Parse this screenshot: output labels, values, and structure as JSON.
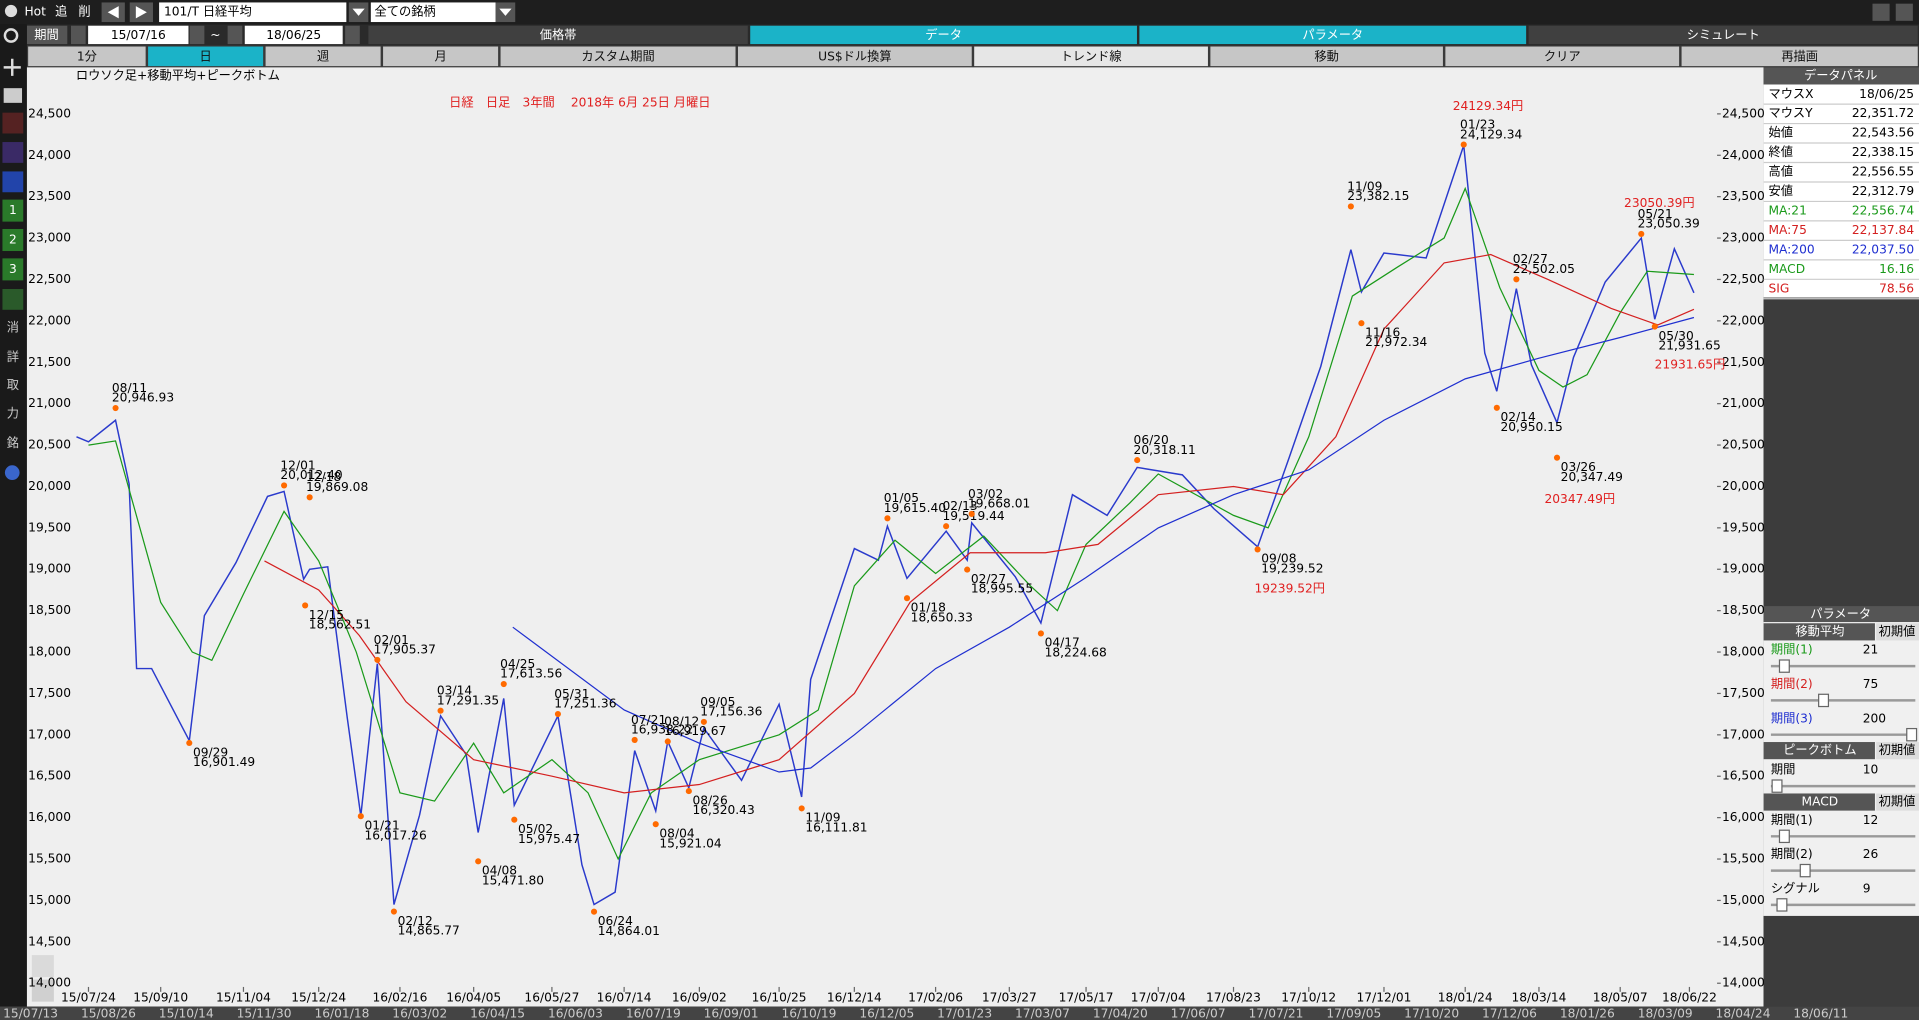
{
  "toolbar": {
    "hot": "Hot",
    "add": "追",
    "del": "削",
    "symbol": "101/T 日経平均",
    "filter": "全ての銘柄"
  },
  "period": {
    "label": "期間",
    "from": "15/07/16",
    "sep": "~",
    "to": "18/06/25"
  },
  "tabs": [
    "価格帯",
    "データ",
    "パラメータ",
    "シミュレート"
  ],
  "buttons": [
    "1分",
    "日",
    "週",
    "月",
    "カスタム期間",
    "US$ドル換算",
    "トレンド線",
    "移動",
    "クリア",
    "再描画"
  ],
  "sidebar": [
    "1",
    "2",
    "3",
    "消",
    "詳",
    "取",
    "力",
    "銘"
  ],
  "chart_data": {
    "type": "line",
    "title": "日経　日足　3年間　 2018年 6月 25日 月曜日",
    "subtitle": "ロウソク足+移動平均+ピークボトム",
    "xlim": [
      "15/07/14",
      "18/07/12"
    ],
    "xticks": [
      "15/07/24",
      "15/09/10",
      "15/11/04",
      "15/12/24",
      "16/02/16",
      "16/04/05",
      "16/05/27",
      "16/07/14",
      "16/09/02",
      "16/10/25",
      "16/12/14",
      "17/02/06",
      "17/03/27",
      "17/05/17",
      "17/07/04",
      "17/08/23",
      "17/10/12",
      "17/12/01",
      "18/01/24",
      "18/03/14",
      "18/05/07",
      "18/06/22"
    ],
    "ylim": [
      13896,
      25062
    ],
    "yticks": [
      {
        "value": 14000,
        "label": "14,000"
      },
      {
        "value": 14500,
        "label": "14,500"
      },
      {
        "value": 15000,
        "label": "15,000"
      },
      {
        "value": 15500,
        "label": "15,500"
      },
      {
        "value": 16000,
        "label": "16,000"
      },
      {
        "value": 16500,
        "label": "16,500"
      },
      {
        "value": 17000,
        "label": "17,000"
      },
      {
        "value": 17500,
        "label": "17,500"
      },
      {
        "value": 18000,
        "label": "18,000"
      },
      {
        "value": 18500,
        "label": "18,500"
      },
      {
        "value": 19000,
        "label": "19,000"
      },
      {
        "value": 19500,
        "label": "19,500"
      },
      {
        "value": 20000,
        "label": "20,000"
      },
      {
        "value": 20500,
        "label": "20,500"
      },
      {
        "value": 21000,
        "label": "21,000"
      },
      {
        "value": 21500,
        "label": "21,500"
      },
      {
        "value": 22000,
        "label": "22,000"
      },
      {
        "value": 22500,
        "label": "22,500"
      },
      {
        "value": 23000,
        "label": "23,000"
      },
      {
        "value": 23500,
        "label": "23,500"
      },
      {
        "value": 24000,
        "label": "24,000"
      },
      {
        "value": 24500,
        "label": "24,500"
      }
    ],
    "series": [
      {
        "color": "#2a3acc",
        "x": [
          "15/07/16",
          "15/07/24",
          "15/08/11",
          "15/08/20",
          "15/08/25",
          "15/09/04",
          "15/09/29",
          "15/10/09",
          "15/10/30",
          "15/11/20",
          "15/12/01",
          "15/12/14",
          "15/12/18",
          "15/12/30",
          "16/01/12",
          "16/01/21",
          "16/02/01",
          "16/02/12",
          "16/02/29",
          "16/03/14",
          "16/03/31",
          "16/04/08",
          "16/04/25",
          "16/05/02",
          "16/05/31",
          "16/06/16",
          "16/06/24",
          "16/07/08",
          "16/07/21",
          "16/08/04",
          "16/08/12",
          "16/08/26",
          "16/09/05",
          "16/09/30",
          "16/10/25",
          "16/11/09",
          "16/11/15",
          "16/12/14",
          "16/12/30",
          "17/01/05",
          "17/01/18",
          "17/02/13",
          "17/02/27",
          "17/03/02",
          "17/03/31",
          "17/04/17",
          "17/05/08",
          "17/05/31",
          "17/06/20",
          "17/07/20",
          "17/08/10",
          "17/09/08",
          "17/09/29",
          "17/10/20",
          "17/11/09",
          "17/11/16",
          "17/12/01",
          "17/12/29",
          "18/01/23",
          "18/02/06",
          "18/02/14",
          "18/02/27",
          "18/03/09",
          "18/03/26",
          "18/04/06",
          "18/04/27",
          "18/05/21",
          "18/05/30",
          "18/06/12",
          "18/06/25"
        ],
        "values": [
          20600,
          20540,
          20800,
          20030,
          17800,
          17800,
          16930,
          18440,
          19080,
          19880,
          19940,
          18880,
          19000,
          19030,
          17200,
          16020,
          17860,
          14950,
          16030,
          17230,
          16760,
          15820,
          17440,
          16150,
          17230,
          15430,
          14950,
          15100,
          16810,
          16080,
          16920,
          16360,
          17080,
          16450,
          17370,
          16250,
          17670,
          19250,
          19110,
          19520,
          18890,
          19460,
          19110,
          19560,
          18910,
          18350,
          19900,
          19650,
          20230,
          20140,
          19730,
          19270,
          20350,
          21450,
          22860,
          22350,
          22820,
          22760,
          24120,
          21610,
          21150,
          22390,
          21470,
          20770,
          21560,
          22470,
          23000,
          22020,
          22870,
          22340
        ]
      },
      {
        "color": "#1a9a1a",
        "x": [
          "15/07/24",
          "15/08/11",
          "15/09/10",
          "15/10/01",
          "15/10/14",
          "15/11/04",
          "15/12/01",
          "15/12/24",
          "16/01/18",
          "16/02/16",
          "16/03/10",
          "16/04/05",
          "16/04/25",
          "16/05/27",
          "16/06/20",
          "16/07/10",
          "16/08/01",
          "16/09/02",
          "16/10/25",
          "16/11/20",
          "16/12/14",
          "17/01/10",
          "17/02/06",
          "17/03/10",
          "17/04/10",
          "17/04/28",
          "17/05/17",
          "17/06/15",
          "17/07/04",
          "17/08/23",
          "17/09/15",
          "17/10/12",
          "17/11/10",
          "17/12/10",
          "18/01/10",
          "18/01/24",
          "18/02/16",
          "18/03/14",
          "18/03/30",
          "18/04/15",
          "18/05/07",
          "18/05/25",
          "18/06/25"
        ],
        "values": [
          20500,
          20550,
          18600,
          18000,
          17900,
          18700,
          19700,
          19100,
          18000,
          16300,
          16200,
          16900,
          16300,
          16700,
          16300,
          15500,
          16300,
          16700,
          17000,
          17300,
          18800,
          19350,
          18950,
          19400,
          18800,
          18500,
          19300,
          19800,
          20150,
          19650,
          19500,
          20600,
          22300,
          22650,
          23000,
          23600,
          22400,
          21400,
          21200,
          21350,
          22100,
          22600,
          22560
        ]
      },
      {
        "color": "#d42020",
        "x": [
          "15/11/18",
          "15/12/24",
          "16/01/20",
          "16/02/20",
          "16/04/05",
          "16/05/27",
          "16/07/14",
          "16/09/02",
          "16/10/25",
          "16/12/14",
          "17/01/20",
          "17/03/01",
          "17/04/20",
          "17/05/25",
          "17/07/04",
          "17/08/23",
          "17/09/25",
          "17/10/30",
          "17/12/01",
          "18/01/10",
          "18/02/10",
          "18/03/20",
          "18/05/01",
          "18/06/01",
          "18/06/25"
        ],
        "values": [
          19100,
          18750,
          18200,
          17400,
          16700,
          16500,
          16300,
          16400,
          16700,
          17500,
          18600,
          19200,
          19200,
          19300,
          19900,
          20000,
          19900,
          20600,
          21900,
          22700,
          22800,
          22500,
          22150,
          21950,
          22140
        ]
      },
      {
        "color": "#1f2fd0",
        "x": [
          "16/05/01",
          "16/07/14",
          "16/09/02",
          "16/10/25",
          "16/11/15",
          "16/12/14",
          "17/02/06",
          "17/03/27",
          "17/05/17",
          "17/07/04",
          "17/08/23",
          "17/10/12",
          "17/12/01",
          "18/01/24",
          "18/03/14",
          "18/05/07",
          "18/06/25"
        ],
        "values": [
          18300,
          17300,
          16900,
          16550,
          16600,
          17000,
          17800,
          18300,
          18900,
          19500,
          19900,
          20200,
          20800,
          21300,
          21550,
          21800,
          22040
        ]
      }
    ],
    "peak_bottom": {
      "color": "#ff6a00",
      "x": [
        "15/08/11",
        "15/09/29",
        "15/12/01",
        "15/12/15",
        "15/12/18",
        "16/01/21",
        "16/02/01",
        "16/02/12",
        "16/03/14",
        "16/04/08",
        "16/04/25",
        "16/05/02",
        "16/05/31",
        "16/06/24",
        "16/07/21",
        "16/08/04",
        "16/08/12",
        "16/08/26",
        "16/09/05",
        "16/11/09",
        "17/01/05",
        "17/01/18",
        "17/02/13",
        "17/02/27",
        "17/03/02",
        "17/04/17",
        "17/06/20",
        "17/09/08",
        "17/11/09",
        "17/11/16",
        "18/01/23",
        "18/02/14",
        "18/02/27",
        "18/03/26",
        "18/05/21",
        "18/05/30"
      ],
      "labels": [
        "08/11",
        "09/29",
        "12/01",
        "12/15",
        "12/18",
        "01/21",
        "02/01",
        "02/12",
        "03/14",
        "04/08",
        "04/25",
        "05/02",
        "05/31",
        "06/24",
        "07/21",
        "08/04",
        "08/12",
        "08/26",
        "09/05",
        "11/09",
        "01/05",
        "01/18",
        "02/13",
        "02/27",
        "03/02",
        "04/17",
        "06/20",
        "09/08",
        "11/09",
        "11/16",
        "01/23",
        "02/14",
        "02/27",
        "03/26",
        "05/21",
        "05/30"
      ],
      "values": [
        20946.93,
        16901.49,
        20012.4,
        18562.51,
        19869.08,
        16017.26,
        17905.37,
        14865.77,
        17291.35,
        15471.8,
        17613.56,
        15975.47,
        17251.36,
        14864.01,
        16938.22,
        15921.04,
        16919.67,
        16320.43,
        17156.36,
        16111.81,
        19615.4,
        18650.33,
        19519.44,
        18995.55,
        19668.01,
        18224.68,
        20318.11,
        19239.52,
        23382.15,
        21972.34,
        24129.34,
        20950.15,
        22502.05,
        20347.49,
        23050.39,
        21931.65
      ],
      "value_labels": [
        "20,946.93",
        "16,901.49",
        "20,012.40",
        "18,562.51",
        "19,869.08",
        "16,017.26",
        "17,905.37",
        "14,865.77",
        "17,291.35",
        "15,471.80",
        "17,613.56",
        "15,975.47",
        "17,251.36",
        "14,864.01",
        "16,938.22",
        "15,921.04",
        "16,919.67",
        "16,320.43",
        "17,156.36",
        "16,111.81",
        "19,615.40",
        "18,650.33",
        "19,519.44",
        "18,995.55",
        "19,668.01",
        "18,224.68",
        "20,318.11",
        "19,239.52",
        "23,382.15",
        "21,972.34",
        "24,129.34",
        "20,950.15",
        "22,502.05",
        "20,347.49",
        "23,050.39",
        "21,931.65"
      ]
    },
    "annotations": [
      "24129.34円",
      "23050.39円",
      "21931.65円",
      "20347.49円",
      "19239.52円"
    ],
    "annotation_color": "#e02020"
  },
  "data_panel": {
    "title": "データパネル",
    "rows": [
      {
        "label": "マウスX",
        "value": "18/06/25",
        "color": "#000000"
      },
      {
        "label": "マウスY",
        "value": "22,351.72",
        "color": "#000000"
      },
      {
        "label": "始値",
        "value": "22,543.56",
        "color": "#000000"
      },
      {
        "label": "終値",
        "value": "22,338.15",
        "color": "#000000"
      },
      {
        "label": "高値",
        "value": "22,556.55",
        "color": "#000000"
      },
      {
        "label": "安値",
        "value": "22,312.79",
        "color": "#000000"
      },
      {
        "label": "MA:21",
        "value": "22,556.74",
        "color": "#1a9a1a"
      },
      {
        "label": "MA:75",
        "value": "22,137.84",
        "color": "#d42020"
      },
      {
        "label": "MA:200",
        "value": "22,037.50",
        "color": "#1f2fd0"
      },
      {
        "label": "MACD",
        "value": "16.16",
        "color": "#1a9a1a"
      },
      {
        "label": "SIG",
        "value": "78.56",
        "color": "#d42020"
      }
    ]
  },
  "parameter_panel": {
    "title": "パラメータ",
    "sections": [
      {
        "title": "移動平均",
        "reset": "初期値",
        "rows": [
          {
            "label": "期間(1)",
            "value": "21",
            "color": "#1a9a1a"
          },
          {
            "label": "期間(2)",
            "value": "75",
            "color": "#d42020"
          },
          {
            "label": "期間(3)",
            "value": "200",
            "color": "#1f2fd0"
          }
        ]
      },
      {
        "title": "ピークボトム",
        "reset": "初期値",
        "rows": [
          {
            "label": "期間",
            "value": "10",
            "color": "#000000"
          }
        ]
      },
      {
        "title": "MACD",
        "reset": "初期値",
        "rows": [
          {
            "label": "期間(1)",
            "value": "12",
            "color": "#000000"
          },
          {
            "label": "期間(2)",
            "value": "26",
            "color": "#000000"
          },
          {
            "label": "シグナル",
            "value": "9",
            "color": "#000000"
          }
        ]
      }
    ]
  },
  "footer_dates": [
    "15/07/13",
    "15/08/26",
    "15/10/14",
    "15/11/30",
    "16/01/18",
    "16/03/02",
    "16/04/15",
    "16/06/03",
    "16/07/19",
    "16/09/01",
    "16/10/19",
    "16/12/05",
    "17/01/23",
    "17/03/07",
    "17/04/20",
    "17/06/07",
    "17/07/21",
    "17/09/05",
    "17/10/20",
    "17/12/06",
    "18/01/26",
    "18/03/09",
    "18/04/24",
    "18/06/11"
  ]
}
